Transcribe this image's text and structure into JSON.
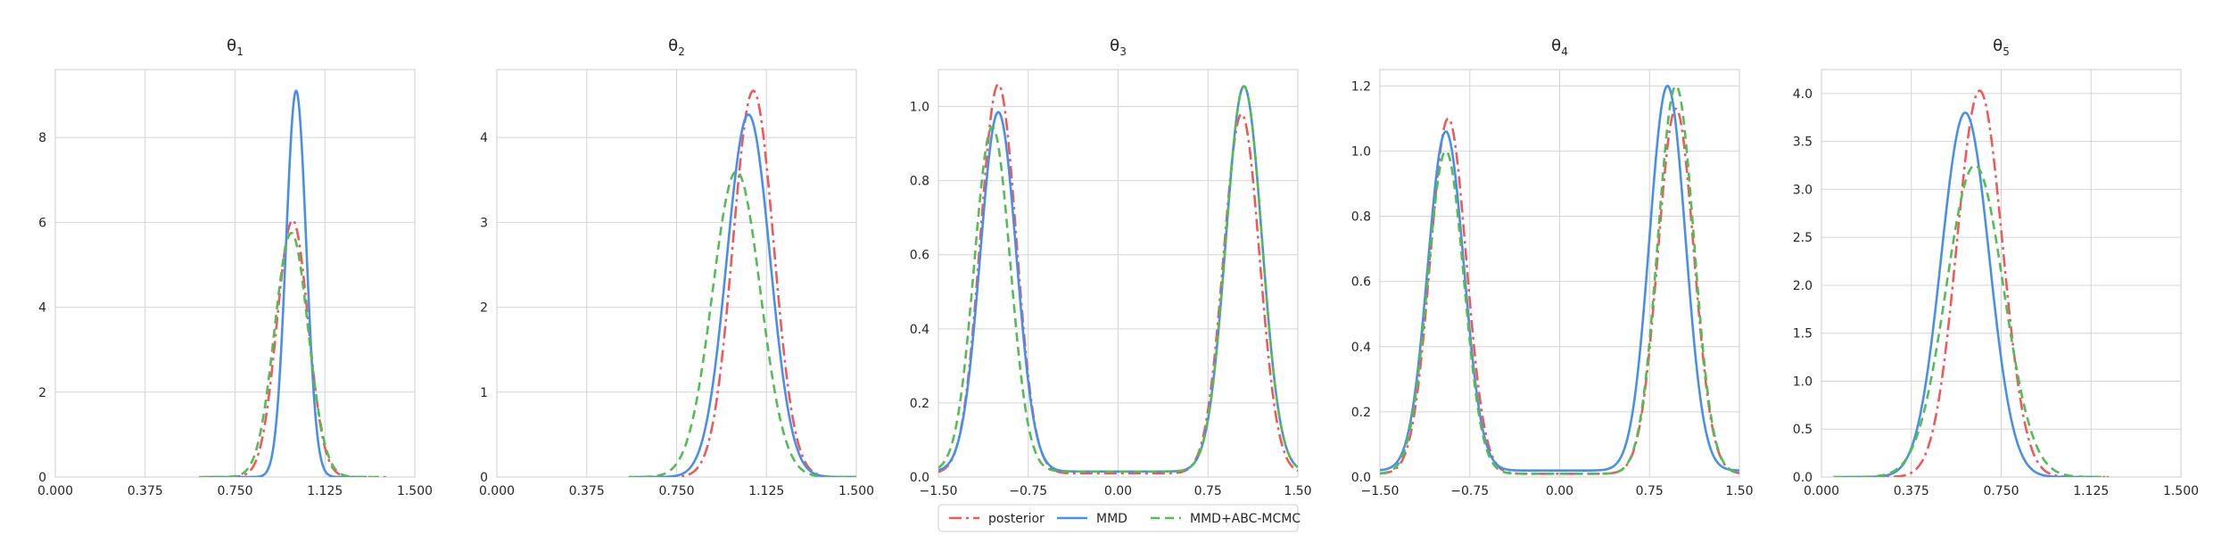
{
  "chart_data": {
    "type": "line",
    "grid": true,
    "legend_placement": "bottom-center",
    "legend": [
      {
        "name": "posterior",
        "color": "#ee5a5a",
        "dash": "dash-dot"
      },
      {
        "name": "MMD",
        "color": "#4a8fe7",
        "dash": "solid"
      },
      {
        "name": "MMD+ABC-MCMC",
        "color": "#55bb55",
        "dash": "dashed"
      }
    ],
    "panels": [
      {
        "title": "θ1",
        "title_base": "θ",
        "title_sub": "1",
        "xlim": [
          0,
          1.5
        ],
        "ylim": [
          0,
          9.6
        ],
        "xticks": [
          "0.000",
          "0.375",
          "0.750",
          "1.125",
          "1.500"
        ],
        "yticks": [
          "0",
          "2",
          "4",
          "6",
          "8"
        ],
        "curves": {
          "posterior": {
            "mu": 0.99,
            "sigma": 0.065,
            "peak": 6.05,
            "range": [
              0.62,
              1.35
            ]
          },
          "MMD": {
            "mu": 1.005,
            "sigma": 0.042,
            "peak": 9.1,
            "range": [
              0.65,
              1.3
            ]
          },
          "MMD+ABC-MCMC": {
            "mu": 0.985,
            "sigma": 0.07,
            "peak": 5.75,
            "range": [
              0.6,
              1.38
            ]
          }
        }
      },
      {
        "title": "θ2",
        "title_base": "θ",
        "title_sub": "2",
        "xlim": [
          0,
          1.5
        ],
        "ylim": [
          0,
          4.8
        ],
        "xticks": [
          "0.000",
          "0.375",
          "0.750",
          "1.125",
          "1.500"
        ],
        "yticks": [
          "0",
          "1",
          "2",
          "3",
          "4"
        ],
        "curves": {
          "posterior": {
            "mu": 1.07,
            "sigma": 0.085,
            "peak": 4.55,
            "range": [
              0.6,
              1.5
            ]
          },
          "MMD": {
            "mu": 1.05,
            "sigma": 0.09,
            "peak": 4.27,
            "range": [
              0.58,
              1.5
            ]
          },
          "MMD+ABC-MCMC": {
            "mu": 1.0,
            "sigma": 0.1,
            "peak": 3.6,
            "range": [
              0.55,
              1.5
            ]
          }
        }
      },
      {
        "title": "θ3",
        "title_base": "θ",
        "title_sub": "3",
        "xlim": [
          -1.5,
          1.5
        ],
        "ylim": [
          0,
          1.1
        ],
        "xticks": [
          "−1.50",
          "−0.75",
          "0.00",
          "0.75",
          "1.50"
        ],
        "yticks": [
          "0.0",
          "0.2",
          "0.4",
          "0.6",
          "0.8",
          "1.0"
        ],
        "curves": {
          "posterior": {
            "modes": [
              [
                -1.0,
                0.15,
                1.05
              ],
              [
                1.03,
                0.15,
                0.97
              ]
            ],
            "base": 0.01
          },
          "MMD": {
            "modes": [
              [
                -1.0,
                0.15,
                0.97
              ],
              [
                1.05,
                0.15,
                1.04
              ]
            ],
            "base": 0.015
          },
          "MMD+ABC-MCMC": {
            "modes": [
              [
                -1.05,
                0.15,
                0.93
              ],
              [
                1.05,
                0.15,
                1.04
              ]
            ],
            "base": 0.015
          }
        }
      },
      {
        "title": "θ4",
        "title_base": "θ",
        "title_sub": "4",
        "xlim": [
          -1.5,
          1.5
        ],
        "ylim": [
          0,
          1.25
        ],
        "xticks": [
          "−1.50",
          "−0.75",
          "0.00",
          "0.75",
          "1.50"
        ],
        "yticks": [
          "0.0",
          "0.2",
          "0.4",
          "0.6",
          "0.8",
          "1.0",
          "1.2"
        ],
        "curves": {
          "posterior": {
            "modes": [
              [
                -0.93,
                0.15,
                1.09
              ],
              [
                0.97,
                0.15,
                1.12
              ]
            ],
            "base": 0.01
          },
          "MMD": {
            "modes": [
              [
                -0.95,
                0.15,
                1.04
              ],
              [
                0.9,
                0.15,
                1.18
              ]
            ],
            "base": 0.02
          },
          "MMD+ABC-MCMC": {
            "modes": [
              [
                -0.95,
                0.15,
                0.99
              ],
              [
                0.97,
                0.15,
                1.19
              ]
            ],
            "base": 0.01
          }
        }
      },
      {
        "title": "θ5",
        "title_base": "θ",
        "title_sub": "5",
        "xlim": [
          0,
          1.5
        ],
        "ylim": [
          0,
          4.25
        ],
        "xticks": [
          "0.000",
          "0.375",
          "0.750",
          "1.125",
          "1.500"
        ],
        "yticks": [
          "0.0",
          "0.5",
          "1.0",
          "1.5",
          "2.0",
          "2.5",
          "3.0",
          "3.5",
          "4.0"
        ],
        "curves": {
          "posterior": {
            "mu": 0.66,
            "sigma": 0.095,
            "peak": 4.03,
            "range": [
              0.1,
              1.2
            ]
          },
          "MMD": {
            "mu": 0.6,
            "sigma": 0.1,
            "peak": 3.8,
            "range": [
              0.05,
              1.15
            ]
          },
          "MMD+ABC-MCMC": {
            "mu": 0.64,
            "sigma": 0.12,
            "peak": 3.25,
            "range": [
              0.05,
              1.2
            ]
          }
        }
      }
    ]
  }
}
